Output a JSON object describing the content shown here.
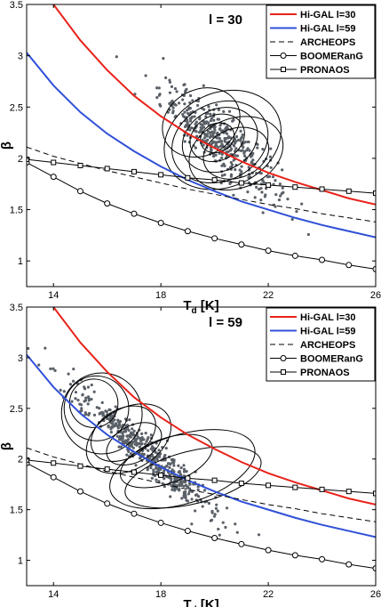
{
  "chart_data": [
    {
      "type": "line",
      "panel_label": "l = 30",
      "xlabel": "T",
      "xlabel_sub": "d",
      "xlabel_unit": "[K]",
      "ylabel": "β",
      "xlim": [
        13,
        26
      ],
      "ylim": [
        0.75,
        3.5
      ],
      "x_ticks": [
        14,
        18,
        22,
        26
      ],
      "y_ticks": [
        1,
        1.5,
        2,
        2.5,
        3,
        3.5
      ],
      "legend_position": "top-right",
      "series": [
        {
          "name": "Hi-GAL l=30",
          "style": "solid",
          "color": "#e8231a",
          "marker": "none",
          "x": [
            14,
            15,
            16,
            17,
            18,
            19,
            20,
            21,
            22,
            23,
            24,
            25,
            26
          ],
          "y": [
            3.5,
            3.15,
            2.86,
            2.61,
            2.41,
            2.24,
            2.1,
            1.97,
            1.86,
            1.77,
            1.69,
            1.61,
            1.55
          ]
        },
        {
          "name": "Hi-GAL l=59",
          "style": "solid",
          "color": "#3050d8",
          "marker": "none",
          "x": [
            13,
            14,
            15,
            16,
            17,
            18,
            19,
            20,
            21,
            22,
            23,
            24,
            25,
            26
          ],
          "y": [
            3.03,
            2.71,
            2.45,
            2.24,
            2.07,
            1.92,
            1.79,
            1.68,
            1.58,
            1.5,
            1.42,
            1.35,
            1.29,
            1.23
          ]
        },
        {
          "name": "ARCHEOPS",
          "style": "dashed",
          "color": "#000000",
          "marker": "none",
          "x": [
            13,
            14,
            15,
            16,
            17,
            18,
            19,
            20,
            21,
            22,
            23,
            24,
            25,
            26
          ],
          "y": [
            2.11,
            2.02,
            1.95,
            1.88,
            1.82,
            1.76,
            1.7,
            1.65,
            1.6,
            1.55,
            1.51,
            1.46,
            1.42,
            1.38
          ]
        },
        {
          "name": "BOOMERanG",
          "style": "solid",
          "color": "#000000",
          "marker": "circle",
          "x": [
            13,
            14,
            15,
            16,
            17,
            18,
            19,
            20,
            21,
            22,
            23,
            24,
            25,
            26
          ],
          "y": [
            1.96,
            1.82,
            1.68,
            1.56,
            1.46,
            1.37,
            1.29,
            1.22,
            1.16,
            1.1,
            1.05,
            1.01,
            0.96,
            0.92
          ]
        },
        {
          "name": "PRONAOS",
          "style": "solid",
          "color": "#000000",
          "marker": "square",
          "x": [
            13,
            14,
            15,
            16,
            17,
            18,
            19,
            20,
            21,
            22,
            23,
            24,
            25,
            26
          ],
          "y": [
            1.99,
            1.96,
            1.93,
            1.9,
            1.87,
            1.84,
            1.81,
            1.79,
            1.76,
            1.74,
            1.72,
            1.7,
            1.68,
            1.66
          ]
        }
      ],
      "contours": [
        {
          "cx": 20.3,
          "cy": 2.18,
          "rx": 4.5,
          "ry": 0.23,
          "angle": -24
        },
        {
          "cx": 20.2,
          "cy": 2.16,
          "rx": 3.7,
          "ry": 0.19,
          "angle": -24
        },
        {
          "cx": 20.2,
          "cy": 2.18,
          "rx": 2.9,
          "ry": 0.15,
          "angle": -25
        },
        {
          "cx": 20.1,
          "cy": 2.2,
          "rx": 2.1,
          "ry": 0.11,
          "angle": -26
        },
        {
          "cx": 20.1,
          "cy": 2.2,
          "rx": 1.3,
          "ry": 0.07,
          "angle": -26
        },
        {
          "cx": 20.8,
          "cy": 2.05,
          "rx": 3.6,
          "ry": 0.17,
          "angle": -20
        },
        {
          "cx": 20.8,
          "cy": 2.05,
          "rx": 2.5,
          "ry": 0.12,
          "angle": -20
        },
        {
          "cx": 19.5,
          "cy": 2.35,
          "rx": 3.0,
          "ry": 0.16,
          "angle": -28
        }
      ],
      "points": {
        "cx": 20.2,
        "cy": 2.17,
        "sx": 1.1,
        "sy": 0.14,
        "slope": -0.2,
        "count": 420
      }
    },
    {
      "type": "line",
      "panel_label": "l = 59",
      "xlabel": "T",
      "xlabel_sub": "d",
      "xlabel_unit": "[K]",
      "ylabel": "β",
      "xlim": [
        13,
        26
      ],
      "ylim": [
        0.75,
        3.5
      ],
      "x_ticks": [
        14,
        18,
        22,
        26
      ],
      "y_ticks": [
        1,
        1.5,
        2,
        2.5,
        3,
        3.5
      ],
      "legend_position": "top-right",
      "series": [
        {
          "name": "Hi-GAL l=30",
          "style": "solid",
          "color": "#e8231a",
          "marker": "none",
          "x": [
            14,
            15,
            16,
            17,
            18,
            19,
            20,
            21,
            22,
            23,
            24,
            25,
            26
          ],
          "y": [
            3.5,
            3.15,
            2.86,
            2.61,
            2.41,
            2.24,
            2.1,
            1.97,
            1.86,
            1.77,
            1.69,
            1.61,
            1.55
          ]
        },
        {
          "name": "Hi-GAL l=59",
          "style": "solid",
          "color": "#3050d8",
          "marker": "none",
          "x": [
            13,
            14,
            15,
            16,
            17,
            18,
            19,
            20,
            21,
            22,
            23,
            24,
            25,
            26
          ],
          "y": [
            3.03,
            2.71,
            2.45,
            2.24,
            2.07,
            1.92,
            1.79,
            1.68,
            1.58,
            1.5,
            1.42,
            1.35,
            1.29,
            1.23
          ]
        },
        {
          "name": "ARCHEOPS",
          "style": "dashed",
          "color": "#000000",
          "marker": "none",
          "x": [
            13,
            14,
            15,
            16,
            17,
            18,
            19,
            20,
            21,
            22,
            23,
            24,
            25,
            26
          ],
          "y": [
            2.11,
            2.02,
            1.95,
            1.88,
            1.82,
            1.76,
            1.7,
            1.65,
            1.6,
            1.55,
            1.51,
            1.46,
            1.42,
            1.38
          ]
        },
        {
          "name": "BOOMERanG",
          "style": "solid",
          "color": "#000000",
          "marker": "circle",
          "x": [
            13,
            14,
            15,
            16,
            17,
            18,
            19,
            20,
            21,
            22,
            23,
            24,
            25,
            26
          ],
          "y": [
            1.96,
            1.82,
            1.68,
            1.56,
            1.46,
            1.37,
            1.29,
            1.22,
            1.16,
            1.1,
            1.05,
            1.01,
            0.96,
            0.92
          ]
        },
        {
          "name": "PRONAOS",
          "style": "solid",
          "color": "#000000",
          "marker": "square",
          "x": [
            13,
            14,
            15,
            16,
            17,
            18,
            19,
            20,
            21,
            22,
            23,
            24,
            25,
            26
          ],
          "y": [
            1.99,
            1.96,
            1.93,
            1.9,
            1.87,
            1.84,
            1.81,
            1.79,
            1.76,
            1.74,
            1.72,
            1.7,
            1.68,
            1.66
          ]
        }
      ],
      "contours": [
        {
          "cx": 15.8,
          "cy": 2.45,
          "rx": 3.0,
          "ry": 0.2,
          "angle": -37
        },
        {
          "cx": 15.6,
          "cy": 2.5,
          "rx": 2.4,
          "ry": 0.16,
          "angle": -37
        },
        {
          "cx": 15.5,
          "cy": 2.55,
          "rx": 1.8,
          "ry": 0.12,
          "angle": -38
        },
        {
          "cx": 16.8,
          "cy": 2.2,
          "rx": 3.4,
          "ry": 0.15,
          "angle": -30
        },
        {
          "cx": 16.6,
          "cy": 2.25,
          "rx": 2.6,
          "ry": 0.12,
          "angle": -32
        },
        {
          "cx": 18.8,
          "cy": 1.9,
          "rx": 5.6,
          "ry": 0.17,
          "angle": -17
        },
        {
          "cx": 19.2,
          "cy": 1.82,
          "rx": 5.2,
          "ry": 0.13,
          "angle": -14
        },
        {
          "cx": 18.2,
          "cy": 1.98,
          "rx": 3.6,
          "ry": 0.11,
          "angle": -20
        },
        {
          "cx": 17.0,
          "cy": 2.15,
          "rx": 2.2,
          "ry": 0.09,
          "angle": -28
        }
      ],
      "points": {
        "cx": 17.4,
        "cy": 2.08,
        "sx": 1.4,
        "sy": 0.09,
        "slope": -0.23,
        "count": 480
      }
    }
  ]
}
